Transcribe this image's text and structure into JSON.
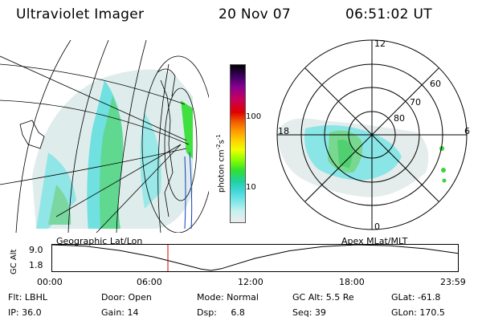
{
  "header": {
    "title": "Ultraviolet Imager",
    "date": "20 Nov 07",
    "time": "06:51:02 UT"
  },
  "colorbar": {
    "unit_base": "photon cm",
    "unit_exp1": "-2",
    "unit_s": "s",
    "unit_exp2": "-1",
    "ticks": [
      {
        "label": "100",
        "value": 100
      },
      {
        "label": "10",
        "value": 10
      }
    ],
    "colors": [
      "#000000",
      "#3a0060",
      "#8a0090",
      "#c8005a",
      "#e00000",
      "#f05a00",
      "#ff9a00",
      "#ffd000",
      "#f0ff00",
      "#90ff00",
      "#30e030",
      "#20d0a0",
      "#40d8d8",
      "#80e8e8",
      "#c8f0f0",
      "#ececec"
    ]
  },
  "left_panel": {
    "label": "Geographic Lat/Lon"
  },
  "right_panel": {
    "label": "Apex MLat/MLT",
    "mlt_labels": [
      {
        "text": "12",
        "pos": "top"
      },
      {
        "text": "18",
        "pos": "left"
      },
      {
        "text": "6",
        "pos": "right"
      },
      {
        "text": "0",
        "pos": "bottom"
      }
    ],
    "lat_labels": [
      "60",
      "70",
      "80"
    ]
  },
  "altitude_plot": {
    "ylabel": "GC Alt",
    "ymax": "9.0",
    "ymin": "1.8",
    "xticks": [
      "00:00",
      "06:00",
      "12:00",
      "18:00",
      "23:59"
    ],
    "current_time_hours": 6.85,
    "orbit": [
      {
        "t": 0.0,
        "alt": 9.0
      },
      {
        "t": 2.0,
        "alt": 8.6
      },
      {
        "t": 4.0,
        "alt": 7.4
      },
      {
        "t": 6.0,
        "alt": 5.6
      },
      {
        "t": 7.5,
        "alt": 3.8
      },
      {
        "t": 8.8,
        "alt": 2.2
      },
      {
        "t": 9.4,
        "alt": 1.8
      },
      {
        "t": 10.0,
        "alt": 2.3
      },
      {
        "t": 12.0,
        "alt": 5.2
      },
      {
        "t": 14.0,
        "alt": 7.3
      },
      {
        "t": 16.0,
        "alt": 8.5
      },
      {
        "t": 18.0,
        "alt": 9.0
      },
      {
        "t": 20.0,
        "alt": 8.7
      },
      {
        "t": 22.0,
        "alt": 7.9
      },
      {
        "t": 23.98,
        "alt": 6.6
      }
    ]
  },
  "status": {
    "row1": [
      {
        "label": "Flt: LBHL"
      },
      {
        "label": "Door: Open"
      },
      {
        "label": "Mode: Normal"
      },
      {
        "label": "GC Alt: 5.5 Re"
      },
      {
        "label": "GLat: -61.8"
      }
    ],
    "row2": [
      {
        "label": "IP: 36.0"
      },
      {
        "label": "Gain: 14"
      },
      {
        "label": "Dsp:     6.8"
      },
      {
        "label": "Seq: 39"
      },
      {
        "label": "GLon: 170.5"
      }
    ]
  }
}
